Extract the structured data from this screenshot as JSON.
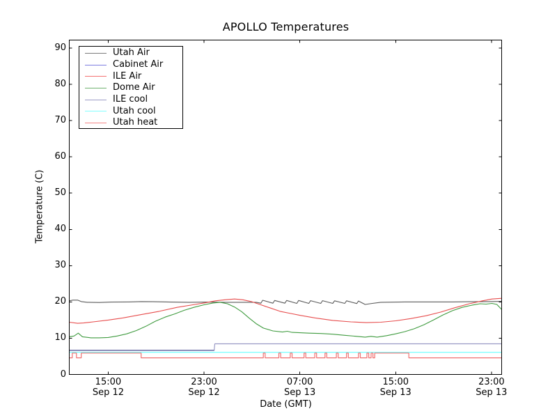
{
  "figure": {
    "background": "#ffffff",
    "frame_color": "#000000"
  },
  "chart_data": {
    "type": "line",
    "title": "APOLLO Temperatures",
    "xlabel": "Date (GMT)",
    "ylabel": "Temperature (C)",
    "ylim": [
      0,
      92.2
    ],
    "xlim_hours": [
      0,
      36.1
    ],
    "grid": false,
    "legend_position": "upper left",
    "y_ticks": [
      0,
      10,
      20,
      30,
      40,
      50,
      60,
      70,
      80,
      90
    ],
    "x_ticks": [
      {
        "t": 3.25,
        "time": "15:00",
        "date": "Sep 12"
      },
      {
        "t": 11.25,
        "time": "23:00",
        "date": "Sep 12"
      },
      {
        "t": 19.25,
        "time": "07:00",
        "date": "Sep 13"
      },
      {
        "t": 27.25,
        "time": "15:00",
        "date": "Sep 13"
      },
      {
        "t": 35.25,
        "time": "23:00",
        "date": "Sep 13"
      }
    ],
    "series": [
      {
        "name": "Utah Air",
        "color": "#595959",
        "legend_color": "#7a7a7a",
        "z": 1,
        "width": 1.1,
        "points": [
          [
            0,
            20.3
          ],
          [
            0.3,
            20.5
          ],
          [
            0.7,
            20.5
          ],
          [
            1.0,
            20.1
          ],
          [
            1.5,
            19.9
          ],
          [
            2.5,
            19.85
          ],
          [
            3.5,
            19.95
          ],
          [
            5,
            20.0
          ],
          [
            6,
            20.1
          ],
          [
            7,
            20.05
          ],
          [
            8.5,
            19.95
          ],
          [
            10,
            19.9
          ],
          [
            11.5,
            19.95
          ],
          [
            13,
            19.9
          ],
          [
            14.5,
            19.9
          ],
          [
            15.6,
            19.9
          ],
          [
            16.0,
            19.65
          ],
          [
            16.15,
            20.45
          ],
          [
            17.0,
            19.65
          ],
          [
            17.15,
            20.4
          ],
          [
            18.0,
            19.65
          ],
          [
            18.15,
            20.4
          ],
          [
            19.0,
            19.6
          ],
          [
            19.15,
            20.4
          ],
          [
            20.0,
            19.6
          ],
          [
            20.15,
            20.35
          ],
          [
            21.0,
            19.6
          ],
          [
            21.15,
            20.35
          ],
          [
            22.0,
            19.6
          ],
          [
            22.15,
            20.3
          ],
          [
            23.0,
            19.6
          ],
          [
            23.15,
            20.3
          ],
          [
            24.0,
            19.55
          ],
          [
            24.15,
            20.25
          ],
          [
            24.7,
            19.3
          ],
          [
            25.3,
            19.6
          ],
          [
            26,
            19.9
          ],
          [
            28,
            20.0
          ],
          [
            30,
            20.0
          ],
          [
            32,
            20.0
          ],
          [
            33.5,
            20.05
          ],
          [
            35,
            20.1
          ],
          [
            36.1,
            20.15
          ]
        ]
      },
      {
        "name": "Cabinet Air",
        "color": "#46468c",
        "legend_color": "#7d7de1",
        "z": 5,
        "width": 1.1,
        "points": [
          [
            0,
            6.65
          ],
          [
            12.1,
            6.65
          ]
        ]
      },
      {
        "name": "ILE Air",
        "color": "#e74c4c",
        "legend_color": "#f47272",
        "z": 2,
        "width": 1.1,
        "points": [
          [
            0,
            14.4
          ],
          [
            0.7,
            14.1
          ],
          [
            1.2,
            14.2
          ],
          [
            2,
            14.5
          ],
          [
            3.25,
            15.0
          ],
          [
            4.5,
            15.6
          ],
          [
            6,
            16.5
          ],
          [
            7.5,
            17.4
          ],
          [
            9,
            18.5
          ],
          [
            10.5,
            19.3
          ],
          [
            11.25,
            19.7
          ],
          [
            12.2,
            20.3
          ],
          [
            13,
            20.6
          ],
          [
            13.8,
            20.8
          ],
          [
            14.5,
            20.6
          ],
          [
            15.2,
            20.1
          ],
          [
            16,
            19.2
          ],
          [
            16.8,
            18.3
          ],
          [
            17.6,
            17.4
          ],
          [
            18.5,
            16.8
          ],
          [
            19.25,
            16.3
          ],
          [
            20.5,
            15.6
          ],
          [
            22,
            14.9
          ],
          [
            23.5,
            14.5
          ],
          [
            24.8,
            14.3
          ],
          [
            26,
            14.4
          ],
          [
            27.25,
            14.8
          ],
          [
            28.5,
            15.4
          ],
          [
            29.8,
            16.2
          ],
          [
            31,
            17.2
          ],
          [
            32.2,
            18.4
          ],
          [
            33.4,
            19.5
          ],
          [
            34.5,
            20.3
          ],
          [
            35.3,
            20.8
          ],
          [
            36.1,
            21.0
          ]
        ]
      },
      {
        "name": "Dome Air",
        "color": "#3f9b3f",
        "legend_color": "#6fb26f",
        "z": 3,
        "width": 1.1,
        "points": [
          [
            0,
            10.4
          ],
          [
            0.4,
            10.6
          ],
          [
            0.75,
            11.4
          ],
          [
            1.1,
            10.4
          ],
          [
            1.8,
            10.1
          ],
          [
            2.5,
            10.1
          ],
          [
            3.25,
            10.2
          ],
          [
            4,
            10.6
          ],
          [
            4.8,
            11.2
          ],
          [
            5.6,
            12.1
          ],
          [
            6.4,
            13.3
          ],
          [
            7.2,
            14.7
          ],
          [
            8,
            15.8
          ],
          [
            8.8,
            16.7
          ],
          [
            9.6,
            17.7
          ],
          [
            10.4,
            18.5
          ],
          [
            11.25,
            19.2
          ],
          [
            12,
            19.7
          ],
          [
            12.6,
            19.9
          ],
          [
            13.2,
            19.5
          ],
          [
            13.8,
            18.6
          ],
          [
            14.4,
            17.3
          ],
          [
            15,
            15.6
          ],
          [
            15.6,
            14.0
          ],
          [
            16.2,
            12.8
          ],
          [
            17,
            12.0
          ],
          [
            17.8,
            11.7
          ],
          [
            18.2,
            11.9
          ],
          [
            18.6,
            11.6
          ],
          [
            19.25,
            11.5
          ],
          [
            20,
            11.4
          ],
          [
            21,
            11.3
          ],
          [
            22,
            11.1
          ],
          [
            23,
            10.8
          ],
          [
            24,
            10.5
          ],
          [
            24.7,
            10.3
          ],
          [
            25.2,
            10.5
          ],
          [
            25.7,
            10.3
          ],
          [
            26.5,
            10.7
          ],
          [
            27.25,
            11.2
          ],
          [
            28,
            11.8
          ],
          [
            28.8,
            12.6
          ],
          [
            29.6,
            13.7
          ],
          [
            30.4,
            15.0
          ],
          [
            31.2,
            16.4
          ],
          [
            32,
            17.6
          ],
          [
            32.8,
            18.5
          ],
          [
            33.6,
            19.1
          ],
          [
            34.3,
            19.5
          ],
          [
            34.8,
            19.4
          ],
          [
            35.3,
            19.6
          ],
          [
            35.7,
            19.3
          ],
          [
            36.1,
            17.9
          ]
        ]
      },
      {
        "name": "ILE cool",
        "color": "#9a9ac6",
        "legend_color": "#9a9ac6",
        "z": 4,
        "width": 1.2,
        "points": [
          [
            0,
            6.65
          ],
          [
            12.1,
            6.65
          ],
          [
            12.15,
            8.45
          ],
          [
            36.1,
            8.45
          ]
        ]
      },
      {
        "name": "Utah cool",
        "color": "#82ffff",
        "legend_color": "#82ffff",
        "z": 6,
        "width": 1.4,
        "points": [
          [
            0,
            6.1
          ],
          [
            36.1,
            6.1
          ]
        ]
      },
      {
        "name": "Utah heat",
        "color": "#f07070",
        "legend_color": "#f58585",
        "z": 7,
        "width": 1.2,
        "points": [
          [
            0,
            4.6
          ],
          [
            0.25,
            4.6
          ],
          [
            0.25,
            5.9
          ],
          [
            0.6,
            5.9
          ],
          [
            0.6,
            4.6
          ],
          [
            1.0,
            4.6
          ],
          [
            1.0,
            5.9
          ],
          [
            6.0,
            5.9
          ],
          [
            6.0,
            4.6
          ],
          [
            16.2,
            4.6
          ],
          [
            16.2,
            5.9
          ],
          [
            16.35,
            5.9
          ],
          [
            16.35,
            4.6
          ],
          [
            17.5,
            4.6
          ],
          [
            17.5,
            5.9
          ],
          [
            17.65,
            5.9
          ],
          [
            17.65,
            4.6
          ],
          [
            18.45,
            4.6
          ],
          [
            18.45,
            5.9
          ],
          [
            18.6,
            5.9
          ],
          [
            18.6,
            4.6
          ],
          [
            19.6,
            4.6
          ],
          [
            19.6,
            5.9
          ],
          [
            19.75,
            5.9
          ],
          [
            19.75,
            4.6
          ],
          [
            20.5,
            4.6
          ],
          [
            20.5,
            5.9
          ],
          [
            20.65,
            5.9
          ],
          [
            20.65,
            4.6
          ],
          [
            21.35,
            4.6
          ],
          [
            21.35,
            5.9
          ],
          [
            21.5,
            5.9
          ],
          [
            21.5,
            4.6
          ],
          [
            22.3,
            4.6
          ],
          [
            22.3,
            5.9
          ],
          [
            22.45,
            5.9
          ],
          [
            22.45,
            4.6
          ],
          [
            23.15,
            4.6
          ],
          [
            23.15,
            5.9
          ],
          [
            23.3,
            5.9
          ],
          [
            23.3,
            4.6
          ],
          [
            24.15,
            4.6
          ],
          [
            24.15,
            5.9
          ],
          [
            24.3,
            5.9
          ],
          [
            24.3,
            4.6
          ],
          [
            24.85,
            4.6
          ],
          [
            24.85,
            5.9
          ],
          [
            25.0,
            5.9
          ],
          [
            25.0,
            4.6
          ],
          [
            25.2,
            4.6
          ],
          [
            25.2,
            5.9
          ],
          [
            25.35,
            5.9
          ],
          [
            25.35,
            4.6
          ],
          [
            25.5,
            4.6
          ],
          [
            25.5,
            5.9
          ],
          [
            28.35,
            5.9
          ],
          [
            28.35,
            4.6
          ],
          [
            36.1,
            4.6
          ]
        ]
      }
    ]
  }
}
